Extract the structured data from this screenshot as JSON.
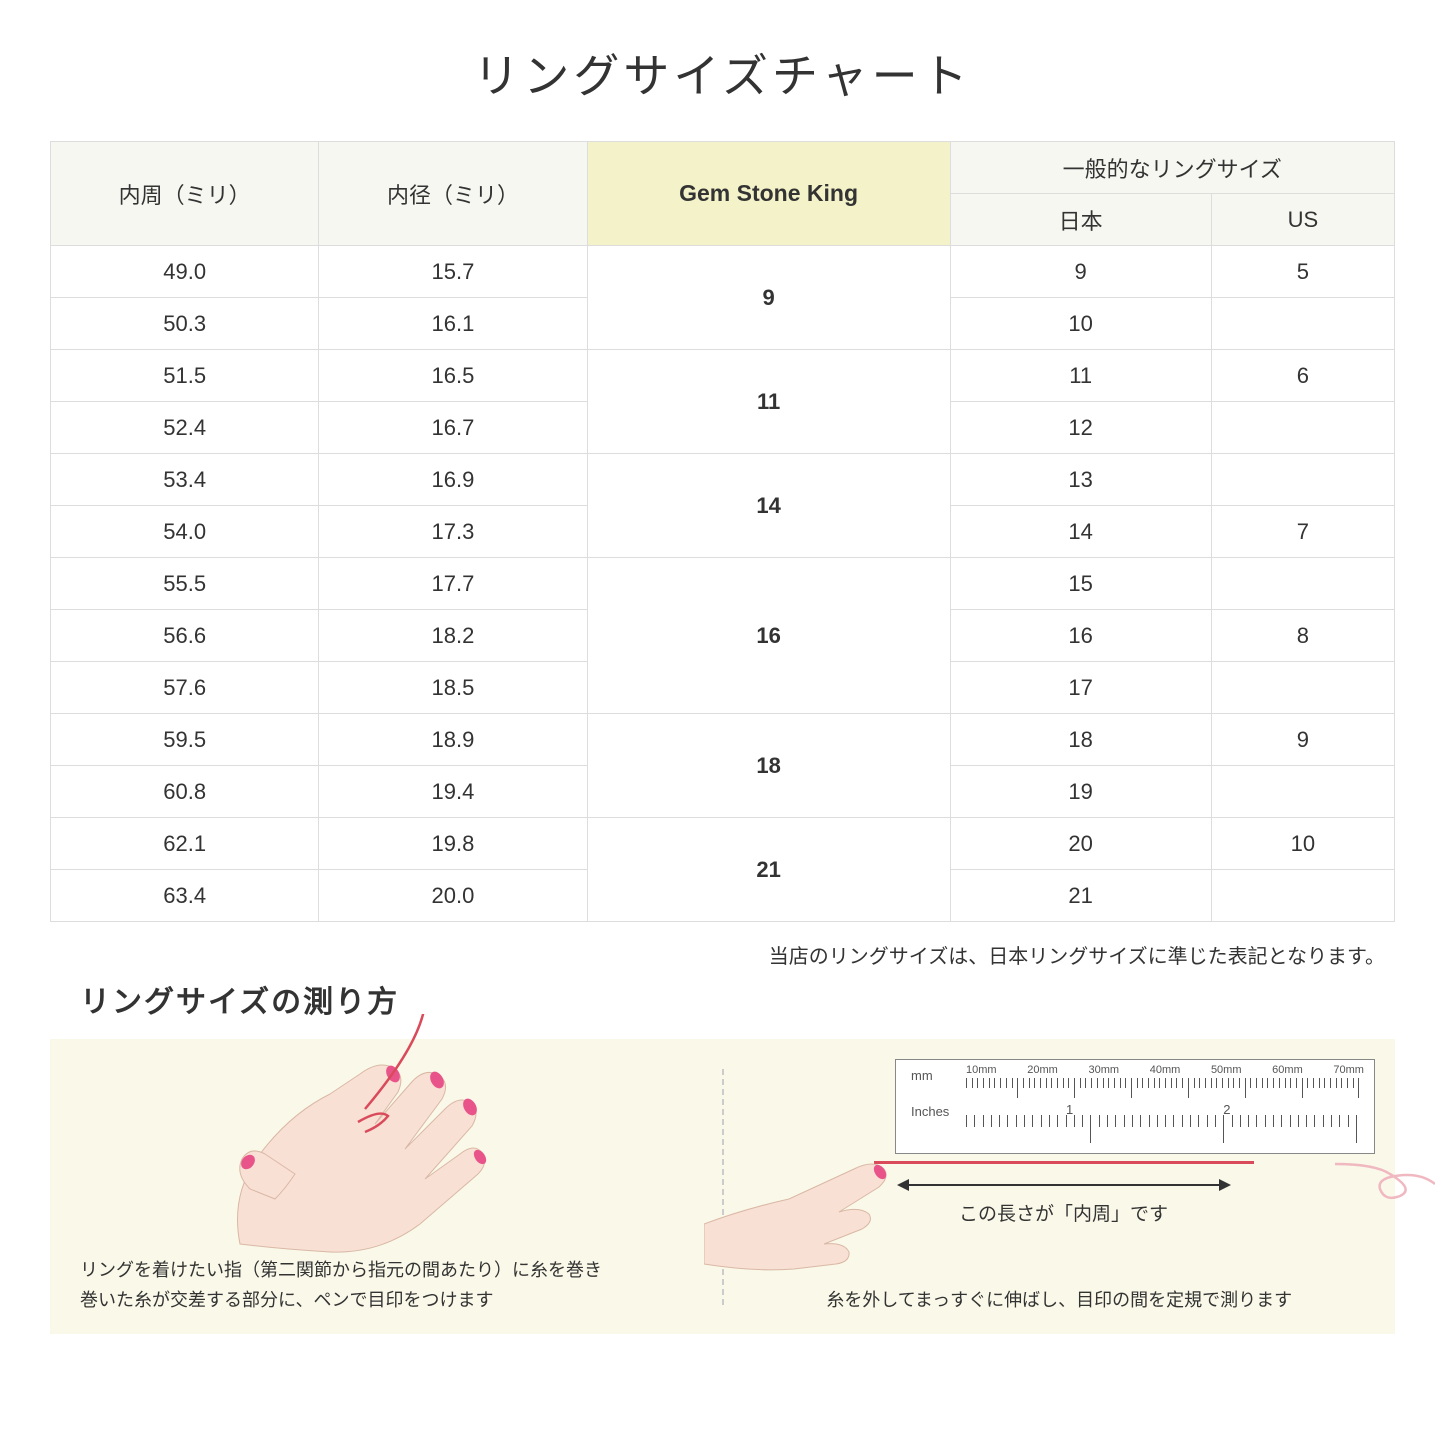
{
  "title": "リングサイズチャート",
  "headers": {
    "circumference": "内周（ミリ）",
    "diameter": "内径（ミリ）",
    "gsk": "Gem Stone King",
    "general": "一般的なリングサイズ",
    "japan": "日本",
    "us": "US"
  },
  "groups": [
    {
      "gsk": "9",
      "rows": [
        {
          "c": "49.0",
          "d": "15.7",
          "jp": "9",
          "us": "5"
        },
        {
          "c": "50.3",
          "d": "16.1",
          "jp": "10",
          "us": ""
        }
      ]
    },
    {
      "gsk": "11",
      "rows": [
        {
          "c": "51.5",
          "d": "16.5",
          "jp": "11",
          "us": "6"
        },
        {
          "c": "52.4",
          "d": "16.7",
          "jp": "12",
          "us": ""
        }
      ]
    },
    {
      "gsk": "14",
      "rows": [
        {
          "c": "53.4",
          "d": "16.9",
          "jp": "13",
          "us": ""
        },
        {
          "c": "54.0",
          "d": "17.3",
          "jp": "14",
          "us": "7"
        }
      ]
    },
    {
      "gsk": "16",
      "rows": [
        {
          "c": "55.5",
          "d": "17.7",
          "jp": "15",
          "us": ""
        },
        {
          "c": "56.6",
          "d": "18.2",
          "jp": "16",
          "us": "8"
        },
        {
          "c": "57.6",
          "d": "18.5",
          "jp": "17",
          "us": ""
        }
      ]
    },
    {
      "gsk": "18",
      "rows": [
        {
          "c": "59.5",
          "d": "18.9",
          "jp": "18",
          "us": "9"
        },
        {
          "c": "60.8",
          "d": "19.4",
          "jp": "19",
          "us": ""
        }
      ]
    },
    {
      "gsk": "21",
      "rows": [
        {
          "c": "62.1",
          "d": "19.8",
          "jp": "20",
          "us": "10"
        },
        {
          "c": "63.4",
          "d": "20.0",
          "jp": "21",
          "us": ""
        }
      ]
    }
  ],
  "note": "当店のリングサイズは、日本リングサイズに準じた表記となります。",
  "howto": {
    "title": "リングサイズの測り方",
    "left_caption_1": "リングを着けたい指（第二関節から指元の間あたり）に糸を巻き",
    "left_caption_2": "巻いた糸が交差する部分に、ペンで目印をつけます",
    "right_arrow_label": "この長さが「内周」です",
    "right_caption": "糸を外してまっすぐに伸ばし、目印の間を定規で測ります",
    "ruler_mm": "mm",
    "ruler_in": "Inches",
    "ruler_mm_labels": [
      "10mm",
      "20mm",
      "30mm",
      "40mm",
      "50mm",
      "60mm",
      "70mm"
    ],
    "ruler_in_labels": [
      "1",
      "2"
    ]
  },
  "colors": {
    "header_bg": "#f7f7f2",
    "gsk_bg": "#f3f2c8",
    "border": "#dddddd",
    "howto_bg": "#faf8e8",
    "skin": "#f9e0d4",
    "skin_dark": "#f0cdb9",
    "nail": "#e8548a",
    "thread": "#d94a5a"
  }
}
